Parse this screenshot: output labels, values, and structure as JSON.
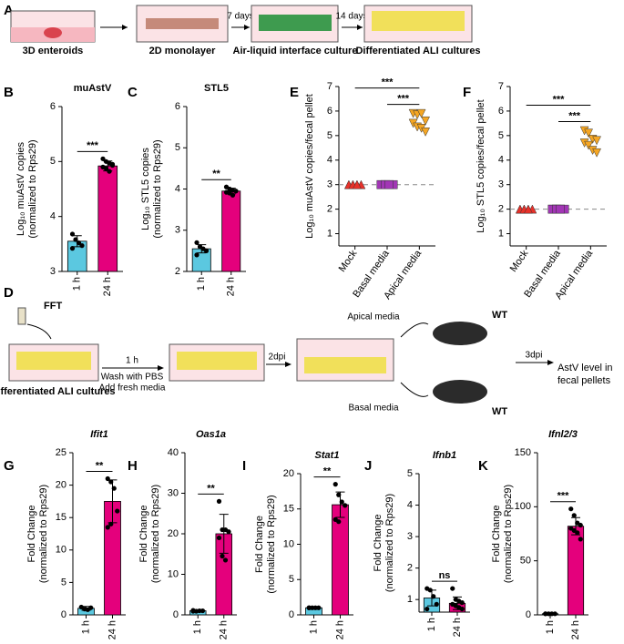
{
  "panel_labels": [
    "A",
    "B",
    "C",
    "D",
    "E",
    "F",
    "G",
    "H",
    "I",
    "J",
    "K"
  ],
  "diagram_a": {
    "steps": [
      "3D enteroids",
      "2D monolayer",
      "Air-liquid interface culture",
      "Differentiated ALI cultures"
    ],
    "durations": [
      "7 days",
      "14 days"
    ]
  },
  "diagram_d": {
    "input": "FFT",
    "well": "Differentiated ALI cultures",
    "time1": "1 h",
    "wash": [
      "Wash with PBS",
      "Add fresh media"
    ],
    "time2": "2dpi",
    "apical": "Apical media",
    "basal": "Basal media",
    "mouse1": "WT",
    "mouse2": "WT",
    "time3": "3dpi",
    "readout": [
      "AstV level in",
      "fecal pellets"
    ]
  },
  "chart_data": [
    {
      "type": "bar",
      "title": "muAstV",
      "ylabel": [
        "Log₁₀ muAstV copies",
        "(normalized to Rps29)"
      ],
      "categories": [
        "1 h",
        "24 h"
      ],
      "colors": [
        "#5bc8e0",
        "#e4007c"
      ],
      "values": [
        3.55,
        4.92
      ],
      "errors": [
        0.1,
        0.09
      ],
      "points": [
        [
          3.68,
          3.58,
          3.52,
          3.47,
          3.42
        ],
        [
          5.05,
          5.0,
          4.97,
          4.93,
          4.9,
          4.87,
          4.82,
          4.95
        ]
      ],
      "ylim": [
        3,
        6
      ],
      "yticks": [
        3,
        4,
        5,
        6
      ],
      "significance": [
        "***"
      ]
    },
    {
      "type": "bar",
      "title": "STL5",
      "ylabel": [
        "Log₁₀ STL5 copies",
        "(normalized to Rps29)"
      ],
      "categories": [
        "1 h",
        "24 h"
      ],
      "colors": [
        "#5bc8e0",
        "#e4007c"
      ],
      "values": [
        2.55,
        3.95
      ],
      "errors": [
        0.1,
        0.07
      ],
      "points": [
        [
          2.7,
          2.6,
          2.55,
          2.5,
          2.4
        ],
        [
          4.05,
          4.0,
          3.97,
          3.95,
          3.92,
          3.9,
          3.85
        ]
      ],
      "ylim": [
        2,
        6
      ],
      "yticks": [
        2,
        3,
        4,
        5,
        6
      ],
      "significance": [
        "**"
      ]
    },
    {
      "type": "strip",
      "ylabel": [
        "Log₁₀ muAstV copies/fecal pellet"
      ],
      "categories": [
        "Mock",
        "Basal media",
        "Apical media"
      ],
      "series": [
        {
          "color": "#e8312a",
          "marker": "triangle",
          "values": [
            3,
            3,
            3,
            3,
            3,
            3,
            3
          ]
        },
        {
          "color": "#a236b5",
          "marker": "square",
          "values": [
            3,
            3,
            3,
            3,
            3,
            3,
            3
          ]
        },
        {
          "color": "#f5a623",
          "marker": "triangle-down",
          "values": [
            5.9,
            5.85,
            5.9,
            5.6,
            5.5,
            5.35,
            5.3,
            5.15
          ]
        }
      ],
      "reference_line": 3,
      "ylim": [
        0.5,
        7
      ],
      "yticks": [
        1,
        2,
        3,
        4,
        5,
        6,
        7
      ],
      "significance": [
        "***",
        "***"
      ]
    },
    {
      "type": "strip",
      "ylabel": [
        "Log₁₀ STL5 copies/fecal pellet"
      ],
      "categories": [
        "Mock",
        "Basal media",
        "Apical media"
      ],
      "series": [
        {
          "color": "#e8312a",
          "marker": "triangle",
          "values": [
            2,
            2,
            2,
            2,
            2,
            2,
            2
          ]
        },
        {
          "color": "#a236b5",
          "marker": "square",
          "values": [
            2,
            2,
            2,
            2,
            2,
            2,
            2
          ]
        },
        {
          "color": "#f5a623",
          "marker": "triangle-down",
          "values": [
            5.2,
            5.1,
            4.85,
            4.8,
            4.7,
            4.6,
            4.4,
            4.3
          ]
        }
      ],
      "reference_line": 2,
      "ylim": [
        0.5,
        7
      ],
      "yticks": [
        1,
        2,
        3,
        4,
        5,
        6,
        7
      ],
      "significance": [
        "***",
        "***"
      ]
    },
    {
      "type": "bar",
      "title": "Ifit1",
      "ylabel": [
        "Fold Change",
        "(normalized to Rps29)"
      ],
      "categories": [
        "1 h",
        "24 h"
      ],
      "colors": [
        "#5bc8e0",
        "#e4007c"
      ],
      "values": [
        1.0,
        17.5
      ],
      "errors": [
        0.3,
        3.3
      ],
      "points": [
        [
          1.2,
          0.9,
          0.8,
          1.1
        ],
        [
          21,
          20.5,
          19.5,
          16,
          13.5,
          14
        ]
      ],
      "ylim": [
        0,
        25
      ],
      "yticks": [
        0,
        5,
        10,
        15,
        20,
        25
      ],
      "significance": [
        "**"
      ]
    },
    {
      "type": "bar",
      "title": "Oas1a",
      "ylabel": [
        "Fold Change",
        "(normalized to Rps29)"
      ],
      "categories": [
        "1 h",
        "24 h"
      ],
      "colors": [
        "#5bc8e0",
        "#e4007c"
      ],
      "values": [
        1.0,
        20.0
      ],
      "errors": [
        0.2,
        4.8
      ],
      "points": [
        [
          1.1,
          0.9,
          1.0,
          1.0,
          0.9
        ],
        [
          28,
          21,
          21,
          20.5,
          19,
          14.5,
          13.5
        ]
      ],
      "ylim": [
        0,
        40
      ],
      "yticks": [
        0,
        10,
        20,
        30,
        40
      ],
      "significance": [
        "**"
      ]
    },
    {
      "type": "bar",
      "title": "Stat1",
      "ylabel": [
        "Fold Change",
        "(normalized to Rps29)"
      ],
      "categories": [
        "1 h",
        "24 h"
      ],
      "colors": [
        "#5bc8e0",
        "#e4007c"
      ],
      "values": [
        1.0,
        15.6
      ],
      "errors": [
        0.1,
        1.8
      ],
      "points": [
        [
          1,
          1,
          1,
          1,
          1
        ],
        [
          18.5,
          17,
          16,
          15.5,
          13.5,
          13.2
        ]
      ],
      "ylim": [
        0,
        20
      ],
      "yticks": [
        0,
        5,
        10,
        15,
        20
      ],
      "significance": [
        "**"
      ]
    },
    {
      "type": "bar",
      "title": "Ifnb1",
      "ylabel": [
        "Fold Change",
        "(normalized to Rps29)"
      ],
      "categories": [
        "1 h",
        "24 h"
      ],
      "colors": [
        "#5bc8e0",
        "#e4007c"
      ],
      "values": [
        1.05,
        0.88
      ],
      "errors": [
        0.25,
        0.2
      ],
      "points": [
        [
          1.35,
          1.3,
          1.1,
          0.85,
          0.7
        ],
        [
          1.35,
          1.0,
          0.95,
          0.9,
          0.85,
          0.8,
          0.75,
          0.7
        ]
      ],
      "ylim": [
        0.6,
        5
      ],
      "yticks": [
        1,
        2,
        3,
        4,
        5
      ],
      "significance": [
        "ns"
      ]
    },
    {
      "type": "bar",
      "title": "Ifnl2/3",
      "ylabel": [
        "Fold Change",
        "(normalized to Rps29)"
      ],
      "categories": [
        "1 h",
        "24 h"
      ],
      "colors": [
        "#5bc8e0",
        "#e4007c"
      ],
      "values": [
        1,
        82
      ],
      "errors": [
        0.5,
        8
      ],
      "points": [
        [
          1,
          1,
          1,
          1,
          1
        ],
        [
          98,
          92,
          85,
          83,
          80,
          78,
          76,
          70
        ]
      ],
      "ylim": [
        0,
        150
      ],
      "yticks": [
        0,
        50,
        100,
        150
      ],
      "significance": [
        "***"
      ]
    }
  ]
}
